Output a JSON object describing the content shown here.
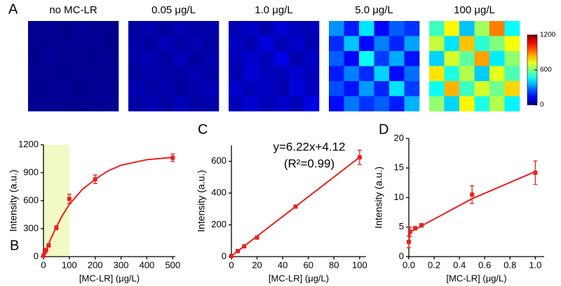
{
  "chart_data": [
    {
      "type": "heatmap",
      "panel_label": "A",
      "panels": [
        {
          "label": "no MC-LR",
          "values": [
            [
              20,
              22,
              18,
              25,
              20,
              19
            ],
            [
              21,
              19,
              23,
              20,
              22,
              18
            ],
            [
              18,
              24,
              20,
              21,
              19,
              22
            ],
            [
              22,
              20,
              19,
              23,
              21,
              20
            ],
            [
              19,
              21,
              22,
              18,
              20,
              23
            ],
            [
              20,
              23,
              21,
              19,
              22,
              20
            ]
          ]
        },
        {
          "label": "0.05 μg/L",
          "values": [
            [
              40,
              55,
              35,
              60,
              45,
              50
            ],
            [
              50,
              38,
              65,
              42,
              58,
              40
            ],
            [
              45,
              60,
              40,
              70,
              36,
              55
            ],
            [
              38,
              52,
              48,
              44,
              62,
              46
            ],
            [
              60,
              42,
              55,
              38,
              50,
              64
            ],
            [
              44,
              58,
              40,
              66,
              46,
              52
            ]
          ]
        },
        {
          "label": "1.0 μg/L",
          "values": [
            [
              60,
              80,
              55,
              95,
              70,
              65
            ],
            [
              75,
              58,
              110,
              62,
              85,
              60
            ],
            [
              68,
              90,
              64,
              120,
              58,
              82
            ],
            [
              55,
              100,
              72,
              66,
              92,
              70
            ],
            [
              88,
              62,
              80,
              58,
              105,
              74
            ],
            [
              64,
              96,
              60,
              86,
              70,
              118
            ]
          ]
        },
        {
          "label": "5.0 μg/L",
          "values": [
            [
              320,
              180,
              420,
              150,
              260,
              210
            ],
            [
              200,
              380,
              160,
              300,
              190,
              340
            ],
            [
              260,
              150,
              460,
              220,
              350,
              170
            ],
            [
              180,
              300,
              200,
              400,
              160,
              280
            ],
            [
              240,
              170,
              330,
              190,
              420,
              220
            ],
            [
              160,
              290,
              210,
              260,
              180,
              360
            ]
          ]
        },
        {
          "label": "100 μg/L",
          "values": [
            [
              520,
              760,
              380,
              640,
              900,
              450
            ],
            [
              680,
              420,
              820,
              500,
              600,
              740
            ],
            [
              400,
              700,
              560,
              860,
              430,
              620
            ],
            [
              780,
              480,
              660,
              390,
              720,
              540
            ],
            [
              460,
              840,
              520,
              700,
              580,
              800
            ],
            [
              620,
              400,
              760,
              480,
              660,
              440
            ]
          ]
        }
      ],
      "colorbar": {
        "lim": [
          0,
          1200
        ],
        "ticks": [
          0,
          600,
          1200
        ]
      }
    },
    {
      "type": "scatter",
      "panel_label": "B",
      "xlabel": "[MC-LR] (μg/L)",
      "ylabel": "Intensity (a.u.)",
      "xlim": [
        0,
        510
      ],
      "ylim": [
        0,
        1200
      ],
      "xticks": [
        0,
        100,
        200,
        300,
        400,
        500
      ],
      "yticks": [
        0,
        300,
        600,
        900,
        1200
      ],
      "highlight": [
        0,
        100
      ],
      "highlight_color": "#f1f9c4",
      "series": [
        {
          "color": "#e8211c",
          "x": [
            0,
            5,
            10,
            20,
            50,
            100,
            200,
            500
          ],
          "values": [
            10,
            50,
            70,
            120,
            310,
            620,
            830,
            1060
          ],
          "errors": [
            10,
            12,
            12,
            15,
            20,
            50,
            45,
            40
          ]
        },
        {
          "color": "#e8211c",
          "style": "line",
          "x": [
            0,
            25,
            50,
            75,
            100,
            150,
            200,
            250,
            300,
            400,
            500
          ],
          "values": [
            0,
            170,
            320,
            450,
            560,
            720,
            830,
            920,
            980,
            1040,
            1065
          ]
        }
      ]
    },
    {
      "type": "scatter",
      "panel_label": "C",
      "xlabel": "[MC-LR] (μg/L)",
      "ylabel": "Intensity (a.u.)",
      "annotations": [
        "y=6.22x+4.12",
        "(R²=0.99)"
      ],
      "xlim": [
        0,
        105
      ],
      "ylim": [
        0,
        700
      ],
      "xticks": [
        0,
        20,
        40,
        60,
        80,
        100
      ],
      "yticks": [
        0,
        200,
        400,
        600
      ],
      "series": [
        {
          "color": "#e8211c",
          "x": [
            0,
            5,
            10,
            20,
            50,
            100
          ],
          "values": [
            4,
            35,
            65,
            120,
            315,
            625
          ],
          "errors": [
            4,
            6,
            6,
            8,
            8,
            45
          ]
        },
        {
          "color": "#e8211c",
          "style": "line",
          "x": [
            0,
            100
          ],
          "values": [
            4,
            626
          ]
        }
      ]
    },
    {
      "type": "scatter",
      "panel_label": "D",
      "xlabel": "[MC-LR] (μg/L)",
      "ylabel": "Intensity (a.u.)",
      "xlim": [
        0,
        1.07
      ],
      "ylim": [
        0,
        20
      ],
      "xticks": [
        {
          "value": 0,
          "label": "0.0"
        },
        0.2,
        0.4,
        0.6,
        0.8,
        {
          "value": 1,
          "label": "1.0"
        }
      ],
      "yticks": [
        0,
        5,
        10,
        15,
        20
      ],
      "series": [
        {
          "color": "#e8211c",
          "x": [
            0,
            0.01,
            0.05,
            0.1,
            0.5,
            1
          ],
          "values": [
            2.5,
            4.2,
            4.8,
            5.3,
            10.5,
            14.2
          ],
          "errors": [
            1,
            0.8,
            0.3,
            0.3,
            1.5,
            2
          ]
        },
        {
          "color": "#e8211c",
          "style": "line",
          "x": [
            0,
            0.01,
            0.05,
            0.1,
            0.5,
            1
          ],
          "values": [
            2.5,
            4.2,
            4.6,
            5.2,
            9.8,
            14.4
          ]
        }
      ]
    }
  ]
}
